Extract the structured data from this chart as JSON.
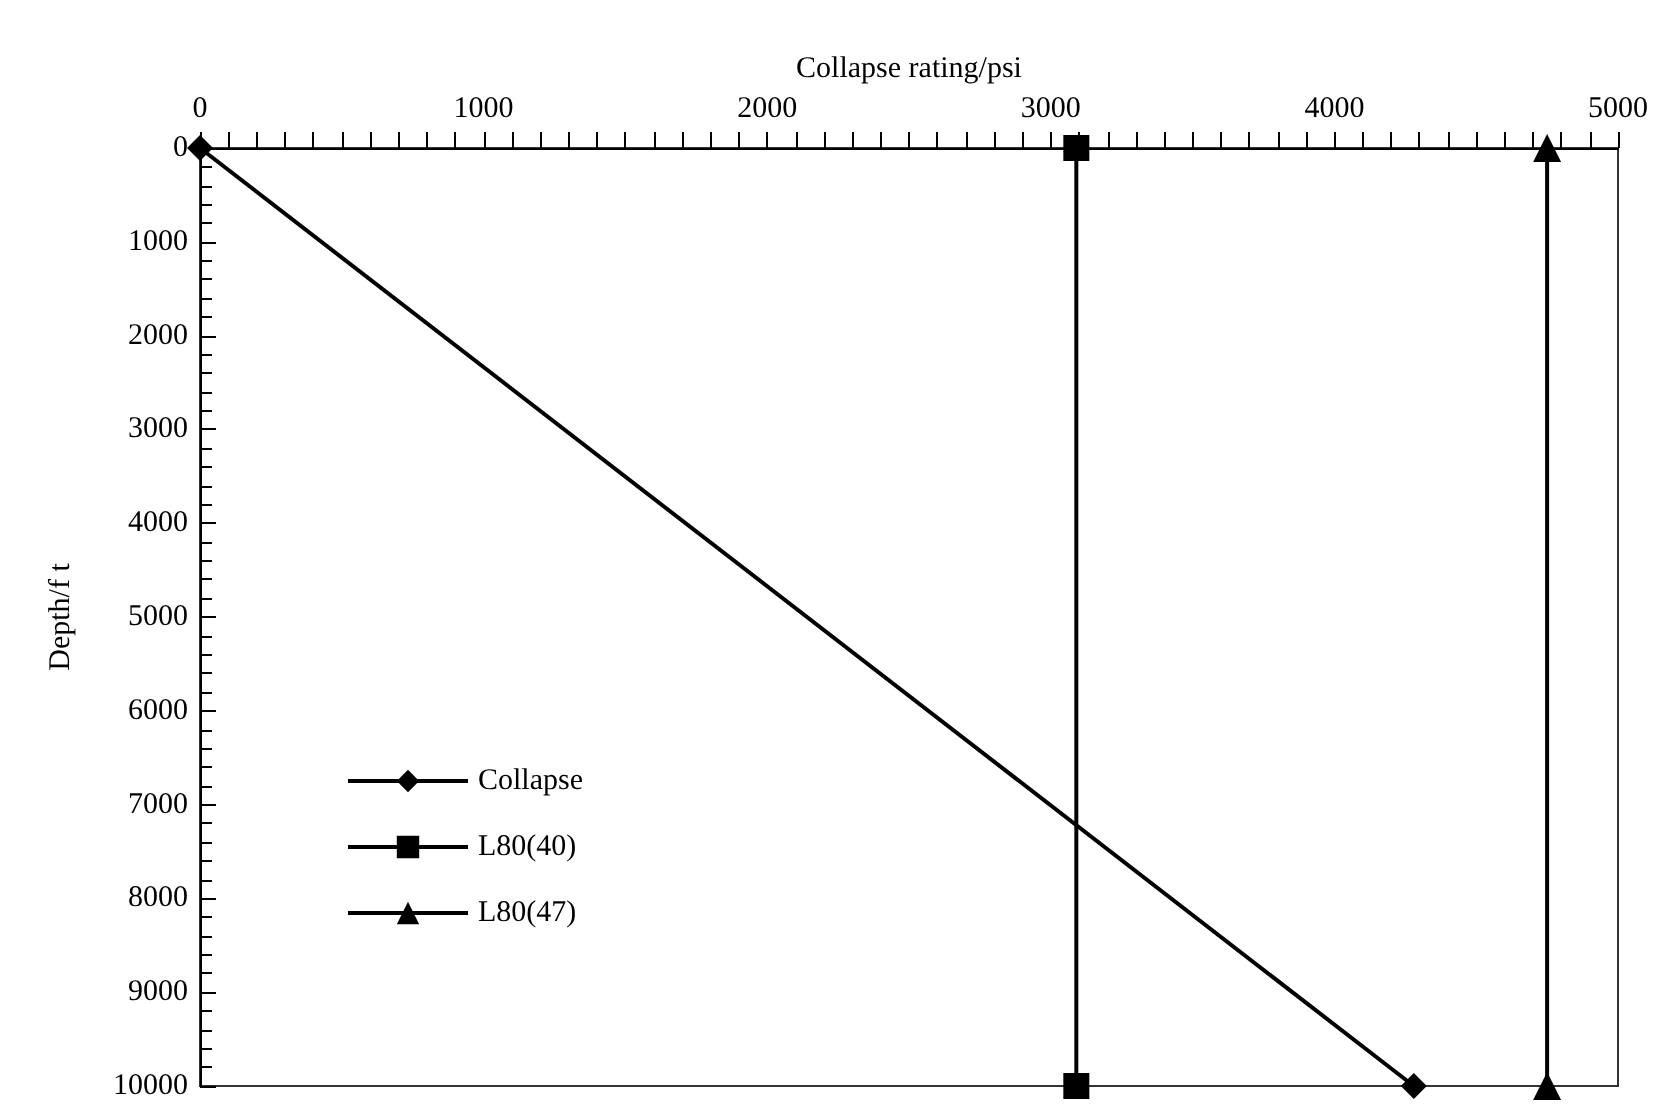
{
  "chart_data": {
    "type": "line",
    "xlabel": "Collapse rating/psi",
    "ylabel": "Depth/f t",
    "xlim": [
      0,
      5000
    ],
    "xticks": [
      0,
      1000,
      2000,
      3000,
      4000,
      5000
    ],
    "ylim": [
      10000,
      0
    ],
    "yticks": [
      0,
      1000,
      2000,
      3000,
      4000,
      5000,
      6000,
      7000,
      8000,
      9000,
      10000
    ],
    "grid": false,
    "legend": "left",
    "line_style": "solid",
    "series": [
      {
        "name": "Collapse",
        "color": "#000000",
        "marker": "diamond",
        "x": [
          0,
          4280
        ],
        "values": [
          0,
          10000
        ]
      },
      {
        "name": "L80(40)",
        "color": "#000000",
        "marker": "square",
        "x": [
          3090,
          3090
        ],
        "values": [
          0,
          10000
        ]
      },
      {
        "name": "L80(47)",
        "color": "#000000",
        "marker": "triangle",
        "x": [
          4750,
          4750
        ],
        "values": [
          0,
          10000
        ]
      }
    ]
  }
}
